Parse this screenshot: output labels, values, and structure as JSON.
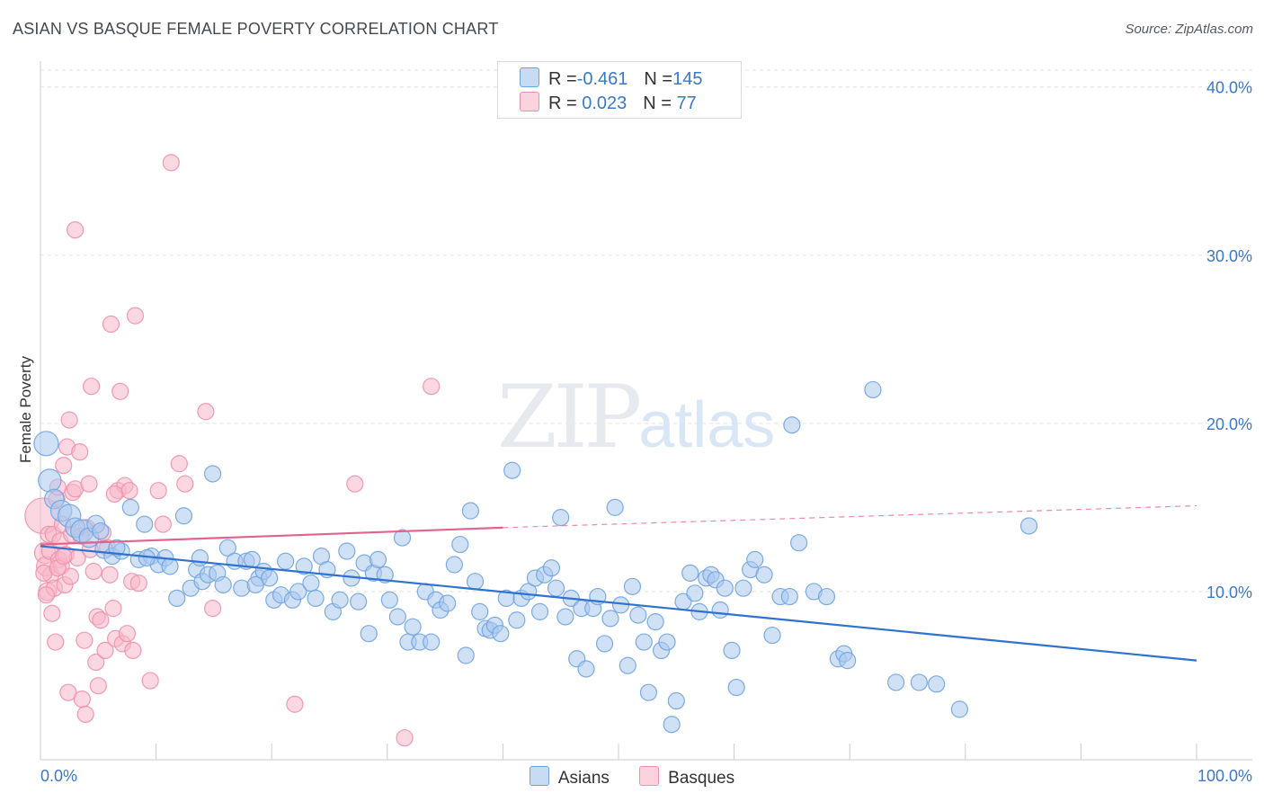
{
  "header": {
    "title": "ASIAN VS BASQUE FEMALE POVERTY CORRELATION CHART",
    "source": "Source: ZipAtlas.com"
  },
  "watermark": {
    "zip": "ZIP",
    "atlas": "atlas"
  },
  "legend": {
    "rows": [
      {
        "r_label": "R = ",
        "r_value": "-0.461",
        "n_label": "N = ",
        "n_value": "145",
        "color": "#a9c8ee"
      },
      {
        "r_label": "R = ",
        "r_value": " 0.023",
        "n_label": "N = ",
        "n_value": " 77",
        "color": "#f7b6c9"
      }
    ]
  },
  "bottom_legend": {
    "items": [
      {
        "label": "Asians",
        "color": "#a9c8ee"
      },
      {
        "label": "Basques",
        "color": "#f7b6c9"
      }
    ]
  },
  "chart_data": {
    "type": "scatter",
    "title": "ASIAN VS BASQUE FEMALE POVERTY CORRELATION CHART",
    "xlabel": "",
    "ylabel": "Female Poverty",
    "xlim": [
      0,
      100
    ],
    "ylim": [
      0,
      41
    ],
    "x_tick_labels": [
      "0.0%",
      "100.0%"
    ],
    "y_ticks": [
      10,
      20,
      30,
      40
    ],
    "y_tick_labels": [
      "10.0%",
      "20.0%",
      "30.0%",
      "40.0%"
    ],
    "grid": true,
    "series": [
      {
        "name": "Asians",
        "color": "#6fa3e0",
        "fill": "#a9c8ee",
        "trend": {
          "x0": 0,
          "y0": 12.7,
          "x1": 100,
          "y1": 5.9,
          "color": "#2f72d0",
          "dashed_from": null
        },
        "points": [
          [
            0.5,
            18.8,
            1.5
          ],
          [
            0.8,
            16.6,
            1.4
          ],
          [
            1.2,
            15.5,
            1.2
          ],
          [
            1.8,
            14.8,
            1.3
          ],
          [
            2.5,
            14.5,
            1.4
          ],
          [
            3.0,
            13.8,
            1.2
          ],
          [
            3.6,
            13.6,
            1.4
          ],
          [
            4.2,
            13.2,
            1.2
          ],
          [
            4.8,
            14.0,
            1.1
          ],
          [
            5.5,
            12.5,
            1.1
          ],
          [
            6.2,
            12.1,
            1.0
          ],
          [
            7.0,
            12.4,
            1.0
          ],
          [
            7.8,
            15.0,
            1.0
          ],
          [
            8.5,
            11.9,
            1.0
          ],
          [
            9.0,
            14.0,
            1.0
          ],
          [
            9.6,
            12.1,
            1.0
          ],
          [
            10.2,
            11.6,
            1.0
          ],
          [
            10.8,
            12.0,
            1.0
          ],
          [
            11.2,
            11.5,
            1.0
          ],
          [
            11.8,
            9.6,
            1.0
          ],
          [
            12.4,
            14.5,
            1.0
          ],
          [
            13.0,
            10.2,
            1.0
          ],
          [
            13.5,
            11.3,
            1.0
          ],
          [
            14.0,
            10.6,
            1.0
          ],
          [
            14.5,
            11.0,
            1.0
          ],
          [
            14.9,
            17.0,
            1.0
          ],
          [
            15.3,
            11.1,
            1.0
          ],
          [
            15.8,
            10.4,
            1.0
          ],
          [
            16.2,
            12.6,
            1.0
          ],
          [
            16.8,
            11.8,
            1.0
          ],
          [
            17.4,
            10.2,
            1.0
          ],
          [
            17.8,
            11.8,
            1.0
          ],
          [
            18.3,
            11.9,
            1.0
          ],
          [
            18.9,
            10.8,
            1.0
          ],
          [
            19.3,
            11.2,
            1.0
          ],
          [
            19.8,
            10.8,
            1.0
          ],
          [
            20.2,
            9.5,
            1.0
          ],
          [
            20.8,
            9.8,
            1.0
          ],
          [
            21.2,
            11.8,
            1.0
          ],
          [
            21.8,
            9.5,
            1.0
          ],
          [
            22.3,
            10.0,
            1.0
          ],
          [
            22.8,
            11.5,
            1.0
          ],
          [
            23.4,
            10.5,
            1.0
          ],
          [
            23.8,
            9.6,
            1.0
          ],
          [
            24.3,
            12.1,
            1.0
          ],
          [
            24.8,
            11.3,
            1.0
          ],
          [
            25.3,
            8.8,
            1.0
          ],
          [
            25.9,
            9.5,
            1.0
          ],
          [
            26.5,
            12.4,
            1.0
          ],
          [
            26.9,
            10.8,
            1.0
          ],
          [
            27.5,
            9.4,
            1.0
          ],
          [
            28.0,
            11.7,
            1.0
          ],
          [
            28.4,
            7.5,
            1.0
          ],
          [
            28.8,
            11.1,
            1.0
          ],
          [
            29.2,
            11.9,
            1.0
          ],
          [
            29.8,
            11.0,
            1.0
          ],
          [
            30.2,
            9.5,
            1.0
          ],
          [
            30.9,
            8.5,
            1.0
          ],
          [
            31.3,
            13.2,
            1.0
          ],
          [
            31.8,
            7.0,
            1.0
          ],
          [
            32.2,
            7.9,
            1.0
          ],
          [
            32.8,
            7.0,
            1.0
          ],
          [
            33.3,
            10.0,
            1.0
          ],
          [
            33.8,
            7.0,
            1.0
          ],
          [
            34.2,
            9.5,
            1.0
          ],
          [
            34.6,
            8.9,
            1.0
          ],
          [
            35.2,
            9.3,
            1.0
          ],
          [
            35.8,
            11.6,
            1.0
          ],
          [
            36.3,
            12.8,
            1.0
          ],
          [
            36.8,
            6.2,
            1.0
          ],
          [
            37.2,
            14.8,
            1.0
          ],
          [
            37.6,
            10.6,
            1.0
          ],
          [
            38.0,
            8.8,
            1.0
          ],
          [
            38.5,
            7.8,
            1.0
          ],
          [
            38.9,
            7.7,
            1.0
          ],
          [
            39.3,
            8.0,
            1.0
          ],
          [
            39.8,
            7.5,
            1.0
          ],
          [
            40.3,
            9.6,
            1.0
          ],
          [
            40.8,
            17.2,
            1.0
          ],
          [
            41.2,
            8.3,
            1.0
          ],
          [
            41.6,
            9.6,
            1.0
          ],
          [
            42.2,
            10.0,
            1.0
          ],
          [
            42.8,
            10.8,
            1.0
          ],
          [
            43.2,
            8.8,
            1.0
          ],
          [
            43.6,
            11.0,
            1.0
          ],
          [
            44.2,
            11.4,
            1.0
          ],
          [
            44.6,
            10.2,
            1.0
          ],
          [
            45.0,
            14.4,
            1.0
          ],
          [
            45.4,
            8.5,
            1.0
          ],
          [
            45.9,
            9.6,
            1.0
          ],
          [
            46.4,
            6.0,
            1.0
          ],
          [
            46.8,
            9.0,
            1.0
          ],
          [
            47.2,
            5.4,
            1.0
          ],
          [
            47.8,
            9.0,
            1.0
          ],
          [
            48.2,
            9.7,
            1.0
          ],
          [
            48.8,
            6.9,
            1.0
          ],
          [
            49.3,
            8.4,
            1.0
          ],
          [
            49.7,
            15.0,
            1.0
          ],
          [
            50.2,
            9.2,
            1.0
          ],
          [
            50.8,
            5.6,
            1.0
          ],
          [
            51.2,
            10.3,
            1.0
          ],
          [
            51.7,
            8.6,
            1.0
          ],
          [
            52.2,
            7.0,
            1.0
          ],
          [
            52.6,
            4.0,
            1.0
          ],
          [
            53.2,
            8.2,
            1.0
          ],
          [
            53.7,
            6.5,
            1.0
          ],
          [
            54.2,
            7.0,
            1.0
          ],
          [
            54.6,
            2.1,
            1.0
          ],
          [
            55.0,
            3.5,
            1.0
          ],
          [
            55.6,
            9.4,
            1.0
          ],
          [
            56.2,
            11.1,
            1.0
          ],
          [
            56.6,
            9.9,
            1.0
          ],
          [
            57.0,
            8.8,
            1.0
          ],
          [
            57.6,
            10.8,
            1.0
          ],
          [
            58.0,
            11.0,
            1.0
          ],
          [
            58.4,
            10.7,
            1.0
          ],
          [
            58.8,
            8.9,
            1.0
          ],
          [
            59.2,
            10.2,
            1.0
          ],
          [
            59.8,
            6.5,
            1.0
          ],
          [
            60.2,
            4.3,
            1.0
          ],
          [
            60.8,
            10.2,
            1.0
          ],
          [
            61.4,
            11.3,
            1.0
          ],
          [
            61.8,
            11.9,
            1.0
          ],
          [
            62.6,
            11.0,
            1.0
          ],
          [
            63.3,
            7.4,
            1.0
          ],
          [
            64.0,
            9.7,
            1.0
          ],
          [
            64.8,
            9.7,
            1.0
          ],
          [
            65.0,
            19.9,
            1.0
          ],
          [
            65.6,
            12.9,
            1.0
          ],
          [
            66.9,
            10.0,
            1.0
          ],
          [
            68.0,
            9.7,
            1.0
          ],
          [
            69.0,
            6.0,
            1.0
          ],
          [
            69.5,
            6.3,
            1.0
          ],
          [
            69.8,
            5.9,
            1.0
          ],
          [
            72.0,
            22.0,
            1.0
          ],
          [
            74.0,
            4.6,
            1.0
          ],
          [
            76.0,
            4.6,
            1.0
          ],
          [
            77.5,
            4.5,
            1.0
          ],
          [
            79.5,
            3.0,
            1.0
          ],
          [
            85.5,
            13.9,
            1.0
          ],
          [
            5.2,
            13.6,
            1.0
          ],
          [
            6.6,
            12.6,
            1.0
          ],
          [
            9.2,
            12.0,
            1.0
          ],
          [
            13.8,
            12.0,
            1.0
          ],
          [
            18.6,
            10.4,
            1.0
          ]
        ]
      },
      {
        "name": "Basques",
        "color": "#ef8fac",
        "fill": "#f7b6c9",
        "trend": {
          "x0": 0,
          "y0": 12.8,
          "x1": 40,
          "y1": 13.8,
          "x_end": 100,
          "y_end": 15.1,
          "color": "#e2638d"
        },
        "points": [
          [
            0.2,
            14.5,
            2.2
          ],
          [
            0.4,
            12.3,
            1.3
          ],
          [
            0.5,
            11.5,
            1.2
          ],
          [
            0.6,
            10.0,
            1.1
          ],
          [
            0.7,
            13.4,
            1.0
          ],
          [
            0.8,
            12.4,
            1.0
          ],
          [
            0.9,
            11.0,
            1.0
          ],
          [
            1.0,
            8.7,
            1.0
          ],
          [
            1.1,
            13.4,
            1.0
          ],
          [
            1.2,
            10.2,
            1.0
          ],
          [
            1.3,
            7.0,
            1.0
          ],
          [
            1.4,
            15.5,
            1.0
          ],
          [
            1.5,
            16.2,
            1.0
          ],
          [
            1.6,
            11.9,
            1.0
          ],
          [
            1.7,
            13.0,
            1.0
          ],
          [
            1.8,
            11.5,
            1.0
          ],
          [
            1.9,
            14.0,
            1.0
          ],
          [
            2.0,
            17.5,
            1.0
          ],
          [
            2.1,
            10.4,
            1.0
          ],
          [
            2.2,
            12.2,
            1.0
          ],
          [
            2.3,
            18.6,
            1.0
          ],
          [
            2.4,
            4.0,
            1.0
          ],
          [
            2.5,
            20.2,
            1.0
          ],
          [
            2.6,
            10.9,
            1.0
          ],
          [
            2.7,
            13.4,
            1.0
          ],
          [
            2.8,
            15.9,
            1.0
          ],
          [
            3.0,
            16.1,
            1.0
          ],
          [
            3.2,
            12.0,
            1.0
          ],
          [
            3.4,
            18.3,
            1.0
          ],
          [
            3.6,
            3.6,
            1.0
          ],
          [
            3.8,
            7.1,
            1.0
          ],
          [
            3.9,
            2.7,
            1.0
          ],
          [
            4.0,
            13.8,
            1.0
          ],
          [
            4.2,
            16.4,
            1.0
          ],
          [
            4.4,
            22.2,
            1.0
          ],
          [
            4.6,
            11.2,
            1.0
          ],
          [
            4.8,
            5.8,
            1.0
          ],
          [
            4.9,
            8.5,
            1.0
          ],
          [
            5.0,
            4.4,
            1.0
          ],
          [
            5.2,
            8.3,
            1.0
          ],
          [
            5.4,
            13.5,
            1.0
          ],
          [
            5.6,
            6.5,
            1.0
          ],
          [
            5.8,
            12.6,
            1.0
          ],
          [
            6.0,
            11.0,
            1.0
          ],
          [
            6.1,
            25.9,
            1.0
          ],
          [
            6.3,
            9.0,
            1.0
          ],
          [
            6.5,
            7.2,
            1.0
          ],
          [
            6.7,
            16.0,
            1.0
          ],
          [
            6.9,
            21.9,
            1.0
          ],
          [
            7.1,
            6.9,
            1.0
          ],
          [
            7.3,
            16.3,
            1.0
          ],
          [
            7.5,
            7.5,
            1.0
          ],
          [
            7.7,
            16.0,
            1.0
          ],
          [
            7.9,
            10.6,
            1.0
          ],
          [
            8.0,
            6.5,
            1.0
          ],
          [
            8.2,
            26.4,
            1.0
          ],
          [
            8.5,
            10.5,
            1.0
          ],
          [
            3.0,
            31.5,
            1.0
          ],
          [
            9.5,
            4.7,
            1.0
          ],
          [
            10.2,
            16.0,
            1.0
          ],
          [
            10.6,
            14.0,
            1.0
          ],
          [
            11.3,
            35.5,
            1.0
          ],
          [
            12.0,
            17.6,
            1.0
          ],
          [
            12.5,
            16.4,
            1.0
          ],
          [
            14.3,
            20.7,
            1.0
          ],
          [
            14.9,
            9.0,
            1.0
          ],
          [
            22.0,
            3.3,
            1.0
          ],
          [
            27.2,
            16.4,
            1.0
          ],
          [
            31.5,
            1.3,
            1.0
          ],
          [
            33.8,
            22.2,
            1.0
          ],
          [
            0.3,
            11.1,
            1.0
          ],
          [
            0.5,
            9.8,
            1.0
          ],
          [
            1.5,
            11.4,
            1.0
          ],
          [
            2.0,
            12.1,
            1.0
          ],
          [
            3.5,
            13.3,
            1.0
          ],
          [
            4.3,
            12.5,
            1.0
          ],
          [
            6.4,
            15.8,
            1.0
          ]
        ]
      }
    ]
  }
}
